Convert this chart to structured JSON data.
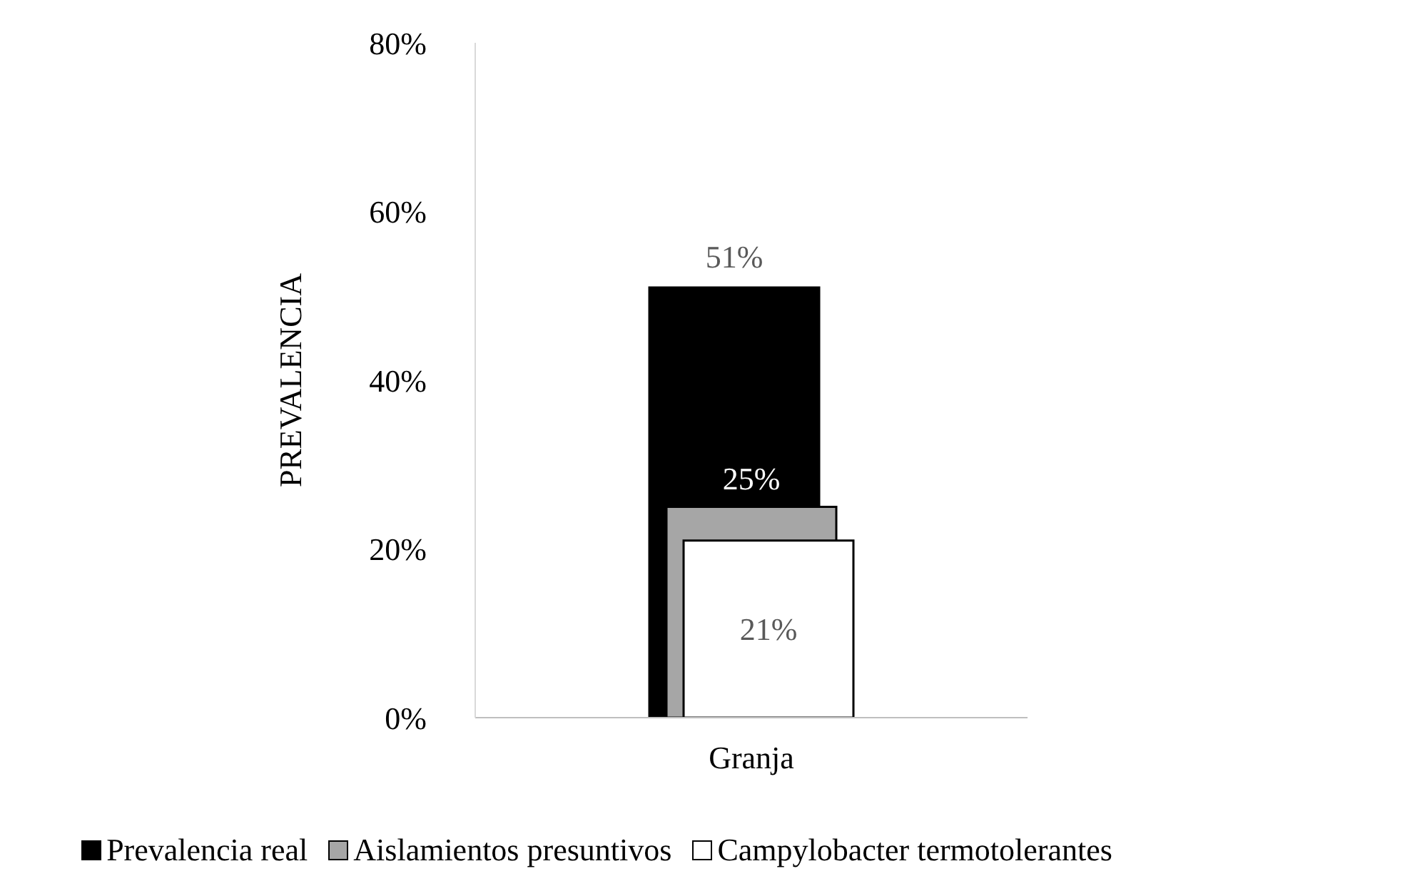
{
  "chart_data": {
    "type": "bar",
    "categories": [
      "Granja"
    ],
    "ylabel": "PREVALENCIA",
    "series": [
      {
        "name": "Prevalencia real",
        "color": "#000000",
        "values": [
          51
        ],
        "value_labels": [
          "51%"
        ]
      },
      {
        "name": "Aislamientos presuntivos",
        "color": "#a6a6a6",
        "values": [
          25
        ],
        "value_labels": [
          "25%"
        ]
      },
      {
        "name": "Campylobacter termotolerantes",
        "color": "#ffffff",
        "values": [
          21
        ],
        "value_labels": [
          "21%"
        ]
      }
    ],
    "ylim": [
      0,
      80
    ],
    "yticks": [
      {
        "value": 0,
        "label": "0%"
      },
      {
        "value": 20,
        "label": "20%"
      },
      {
        "value": 40,
        "label": "40%"
      },
      {
        "value": 60,
        "label": "60%"
      },
      {
        "value": 80,
        "label": "80%"
      }
    ],
    "grid": false,
    "legend": "bottom"
  }
}
